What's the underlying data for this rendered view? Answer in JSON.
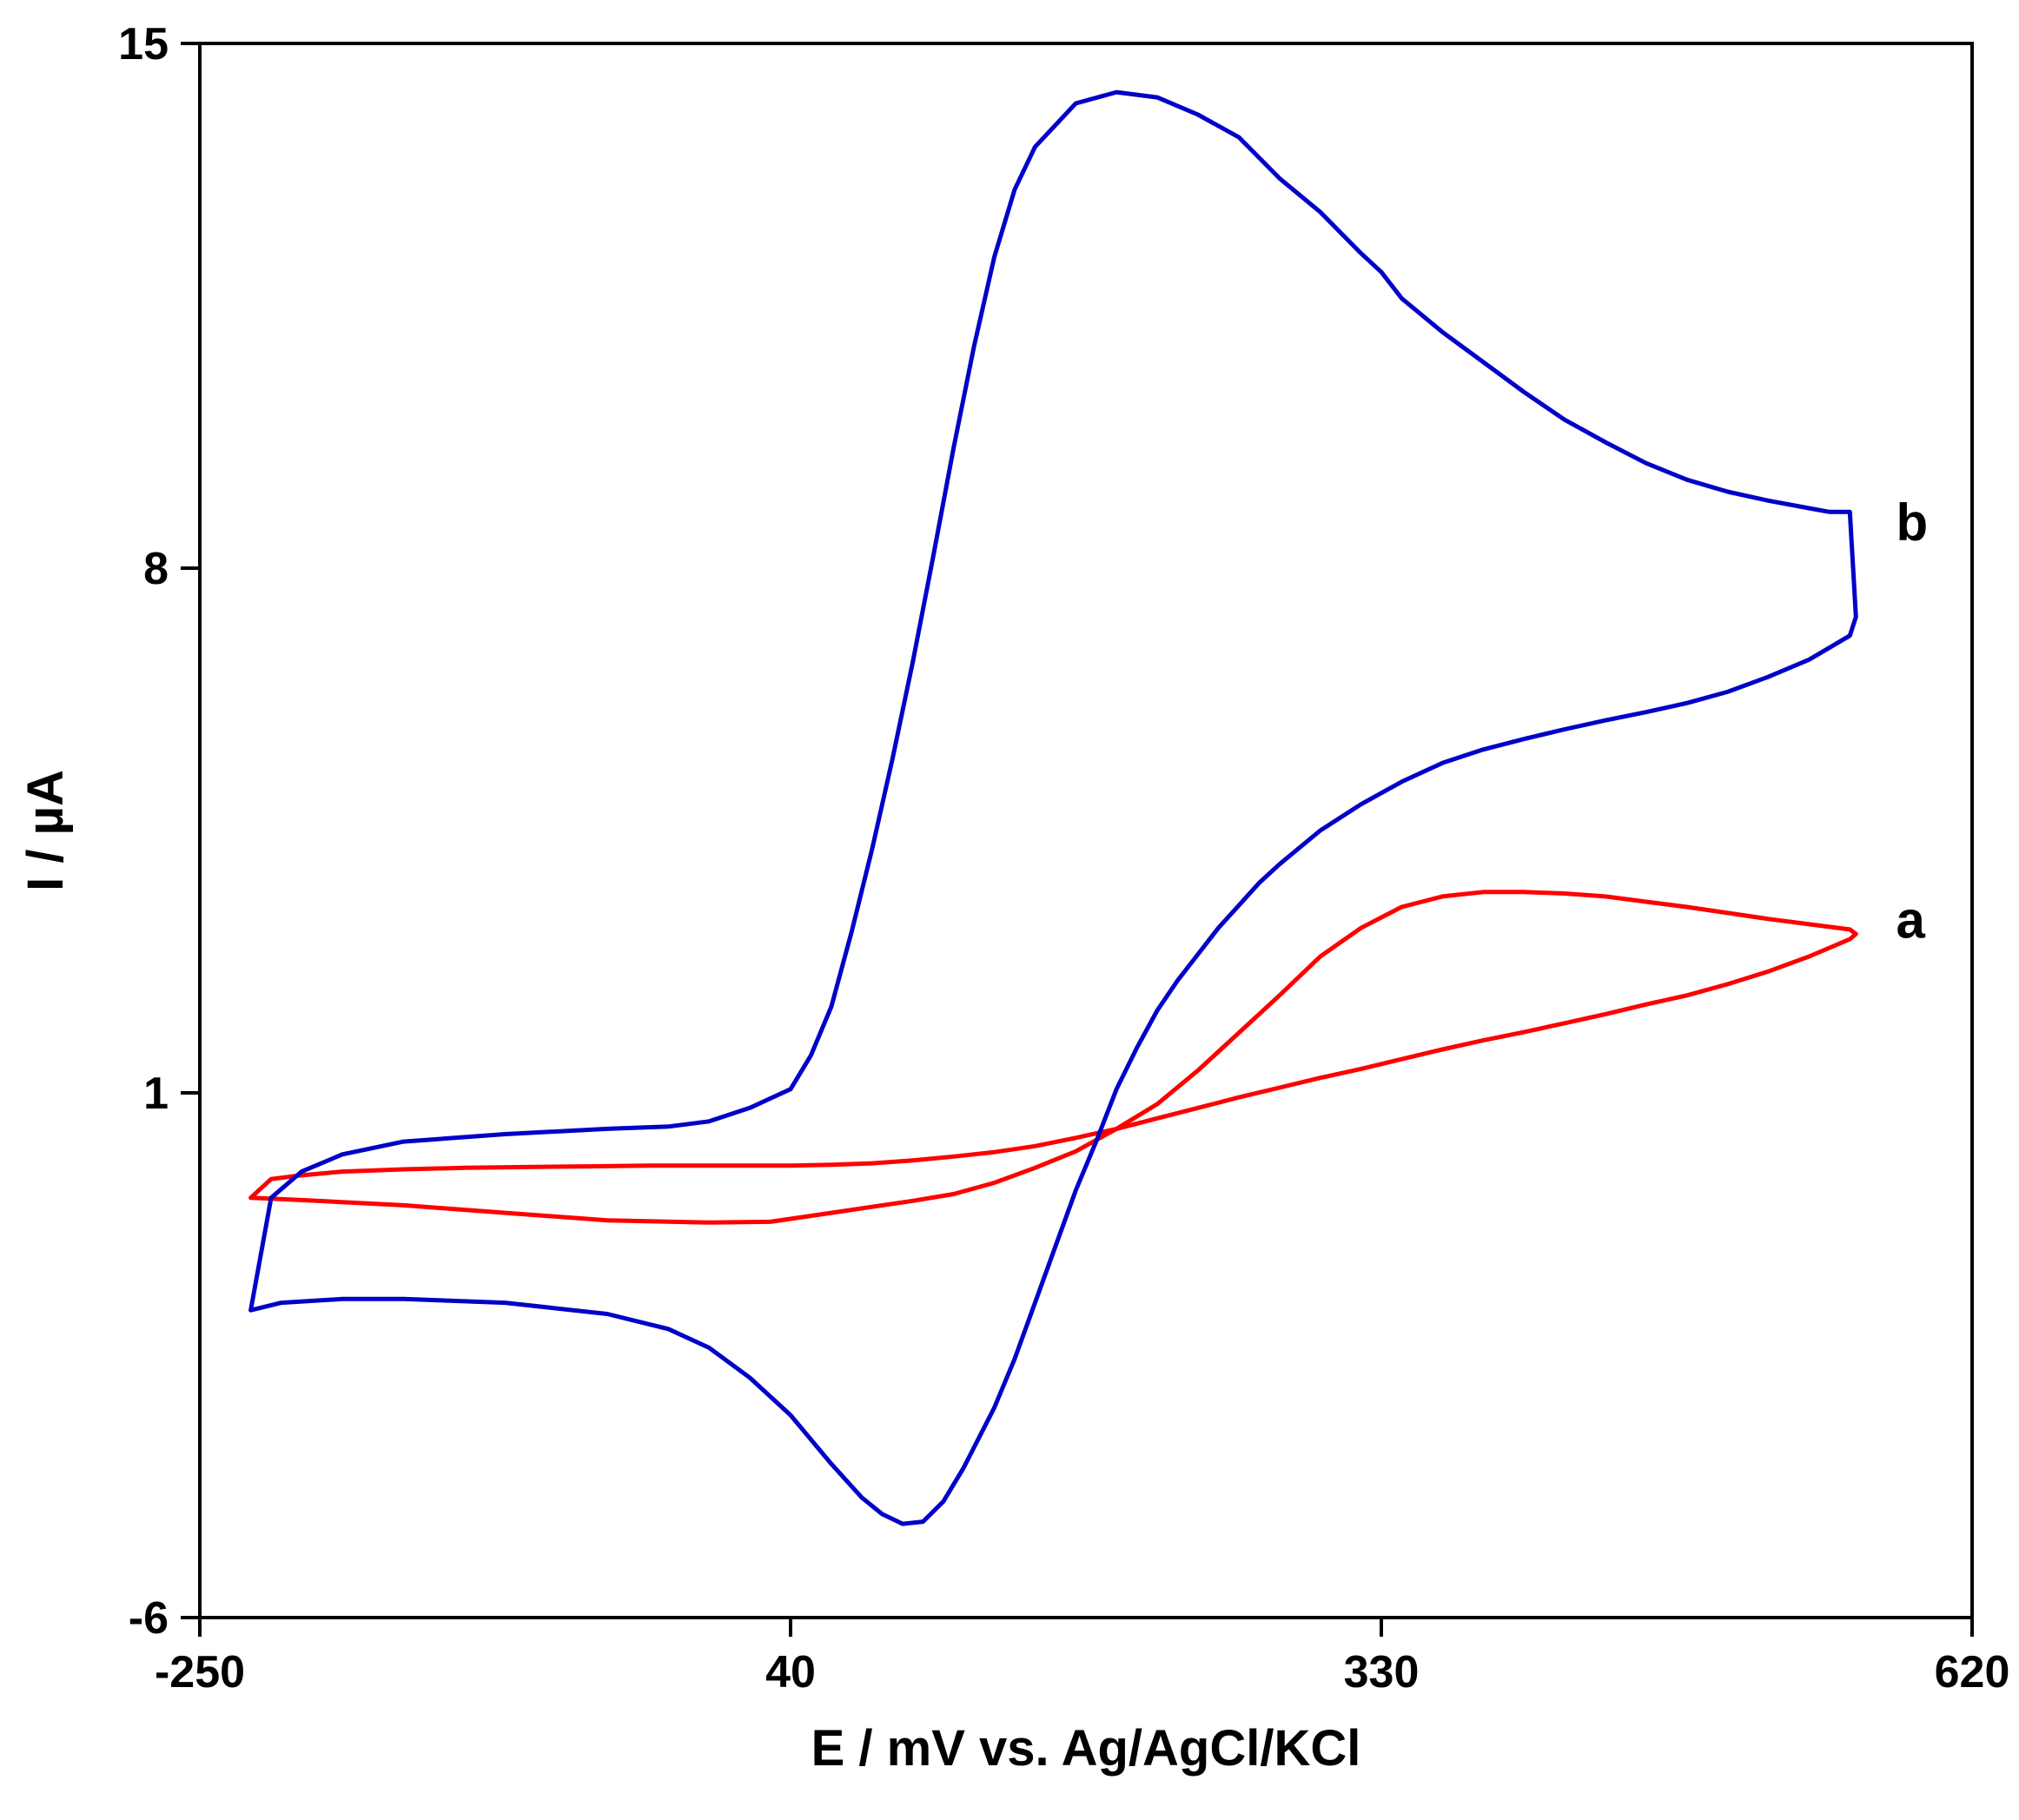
{
  "chart_data": {
    "type": "line",
    "title": "",
    "xlabel": "E / mV vs. Ag/AgCl/KCl",
    "ylabel": "I / µA",
    "xlim": [
      -250,
      620
    ],
    "ylim": [
      -6,
      15
    ],
    "xticks": [
      -250,
      40,
      330,
      620
    ],
    "xtick_labels": [
      "-250",
      "40",
      "330",
      "620"
    ],
    "yticks": [
      -6,
      1,
      8,
      15
    ],
    "ytick_labels": [
      "-6",
      "1",
      "8",
      "15"
    ],
    "grid": false,
    "legend": "none",
    "series": [
      {
        "name": "a",
        "color": "#ff0000",
        "label_at": [
          575,
          3.3
        ],
        "x": [
          -225,
          -200,
          -150,
          -100,
          -50,
          0,
          30,
          60,
          80,
          100,
          120,
          140,
          160,
          180,
          200,
          220,
          240,
          260,
          280,
          300,
          320,
          340,
          360,
          380,
          400,
          420,
          440,
          460,
          480,
          500,
          520,
          540,
          560,
          563,
          560,
          540,
          520,
          500,
          480,
          460,
          440,
          420,
          400,
          380,
          360,
          340,
          320,
          300,
          280,
          260,
          240,
          220,
          200,
          180,
          160,
          140,
          120,
          100,
          80,
          60,
          40,
          20,
          0,
          -30,
          -60,
          -90,
          -120,
          -150,
          -180,
          -200,
          -215,
          -225
        ],
        "y": [
          -0.4,
          -0.43,
          -0.5,
          -0.6,
          -0.7,
          -0.73,
          -0.72,
          -0.6,
          -0.52,
          -0.44,
          -0.35,
          -0.2,
          0.0,
          0.22,
          0.52,
          0.85,
          1.3,
          1.8,
          2.3,
          2.82,
          3.2,
          3.48,
          3.62,
          3.68,
          3.68,
          3.66,
          3.62,
          3.55,
          3.48,
          3.4,
          3.32,
          3.25,
          3.18,
          3.12,
          3.05,
          2.82,
          2.62,
          2.45,
          2.3,
          2.18,
          2.05,
          1.93,
          1.81,
          1.7,
          1.58,
          1.45,
          1.32,
          1.2,
          1.07,
          0.94,
          0.8,
          0.66,
          0.52,
          0.4,
          0.29,
          0.21,
          0.15,
          0.1,
          0.06,
          0.04,
          0.03,
          0.03,
          0.03,
          0.03,
          0.02,
          0.01,
          0.0,
          -0.02,
          -0.05,
          -0.1,
          -0.15,
          -0.4
        ]
      },
      {
        "name": "b",
        "color": "#0000c8",
        "label_at": [
          575,
          8.6
        ],
        "x": [
          -225,
          -210,
          -180,
          -150,
          -100,
          -50,
          -20,
          0,
          20,
          40,
          60,
          75,
          85,
          95,
          105,
          115,
          125,
          140,
          150,
          160,
          170,
          180,
          190,
          200,
          210,
          220,
          230,
          240,
          250,
          260,
          270,
          280,
          300,
          320,
          340,
          360,
          380,
          400,
          420,
          440,
          460,
          480,
          500,
          520,
          540,
          560,
          563,
          560,
          550,
          540,
          520,
          500,
          480,
          460,
          440,
          420,
          400,
          380,
          360,
          340,
          330,
          320,
          300,
          280,
          260,
          240,
          220,
          200,
          180,
          160,
          150,
          140,
          130,
          120,
          110,
          100,
          90,
          80,
          70,
          60,
          50,
          40,
          20,
          0,
          -20,
          -50,
          -100,
          -150,
          -180,
          -200,
          -215,
          -225
        ],
        "y": [
          -1.9,
          -1.8,
          -1.75,
          -1.75,
          -1.8,
          -1.95,
          -2.15,
          -2.4,
          -2.8,
          -3.3,
          -3.95,
          -4.4,
          -4.62,
          -4.75,
          -4.72,
          -4.45,
          -4.0,
          -3.2,
          -2.55,
          -1.8,
          -1.05,
          -0.3,
          0.35,
          1.05,
          1.6,
          2.1,
          2.5,
          2.85,
          3.2,
          3.5,
          3.8,
          4.05,
          4.5,
          4.85,
          5.15,
          5.4,
          5.58,
          5.72,
          5.85,
          5.97,
          6.08,
          6.2,
          6.35,
          6.55,
          6.78,
          7.1,
          7.35,
          8.75,
          8.75,
          8.8,
          8.9,
          9.02,
          9.18,
          9.4,
          9.68,
          9.98,
          10.35,
          10.75,
          11.15,
          11.6,
          11.95,
          12.2,
          12.75,
          13.2,
          13.75,
          14.05,
          14.28,
          14.35,
          14.2,
          13.62,
          13.05,
          12.15,
          10.95,
          9.6,
          8.15,
          6.75,
          5.45,
          4.25,
          3.15,
          2.15,
          1.5,
          1.05,
          0.8,
          0.62,
          0.55,
          0.52,
          0.45,
          0.35,
          0.18,
          -0.05,
          -0.4,
          -1.9
        ]
      }
    ]
  }
}
